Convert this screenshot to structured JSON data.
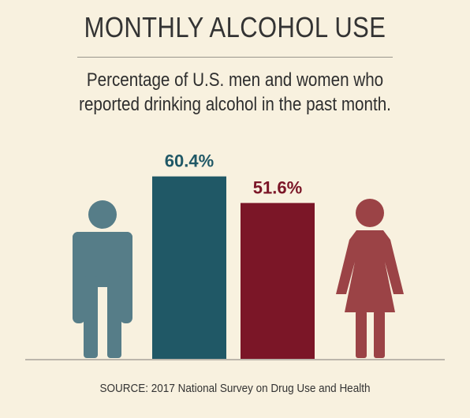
{
  "title": "MONTHLY ALCOHOL USE",
  "subtitle_lines": [
    "Percentage of U.S. men and women who",
    "reported drinking alcohol in the past month."
  ],
  "source": "SOURCE: 2017 National Survey on Drug Use and Health",
  "icons": {
    "men": "man-icon",
    "women": "woman-icon"
  },
  "colors": {
    "background": "#f8f1df",
    "men": "#205866",
    "women": "#7b1627",
    "men_icon": "#567d88",
    "women_icon": "#9b4346",
    "baseline": "#a7a39a"
  },
  "chart_data": {
    "type": "bar",
    "categories": [
      "U.S. men",
      "U.S. women"
    ],
    "values": [
      60.4,
      51.6
    ],
    "value_labels": [
      "60.4%",
      "51.6%"
    ],
    "title": "MONTHLY ALCOHOL USE",
    "subtitle": "Percentage of U.S. men and women who reported drinking alcohol in the past month.",
    "xlabel": "",
    "ylabel": "",
    "ylim": [
      0,
      100
    ],
    "grid": false,
    "legend": "none"
  }
}
